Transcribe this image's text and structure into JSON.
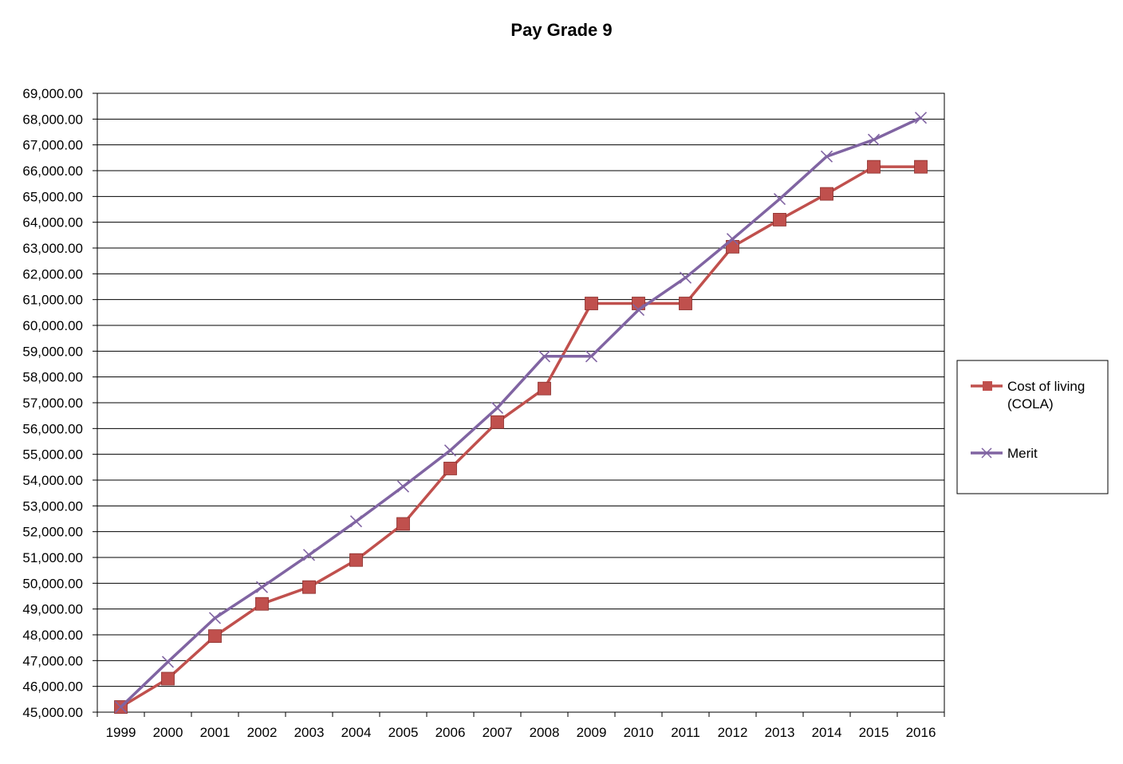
{
  "chart_data": {
    "type": "line",
    "title": "Pay Grade 9",
    "xlabel": "",
    "ylabel": "",
    "categories": [
      "1999",
      "2000",
      "2001",
      "2002",
      "2003",
      "2004",
      "2005",
      "2006",
      "2007",
      "2008",
      "2009",
      "2010",
      "2011",
      "2012",
      "2013",
      "2014",
      "2015",
      "2016"
    ],
    "ylim": [
      45000,
      69000
    ],
    "ytick_step": 1000,
    "grid": "horizontal",
    "legend_position": "right",
    "series": [
      {
        "name": "Cost of living (COLA)",
        "legend_lines": [
          "Cost of living",
          "(COLA)"
        ],
        "color": "#C0504D",
        "marker": "square",
        "values": [
          45200,
          46300,
          47950,
          49200,
          49850,
          50900,
          52300,
          54450,
          56250,
          57550,
          60850,
          60850,
          60850,
          63050,
          64100,
          65100,
          66150,
          66150
        ]
      },
      {
        "name": "Merit",
        "legend_lines": [
          "Merit"
        ],
        "color": "#8064A2",
        "marker": "x",
        "values": [
          45200,
          46950,
          48650,
          49850,
          51100,
          52400,
          53750,
          55150,
          56800,
          58800,
          58800,
          60600,
          61850,
          63350,
          64900,
          66550,
          67200,
          68050
        ]
      }
    ]
  }
}
